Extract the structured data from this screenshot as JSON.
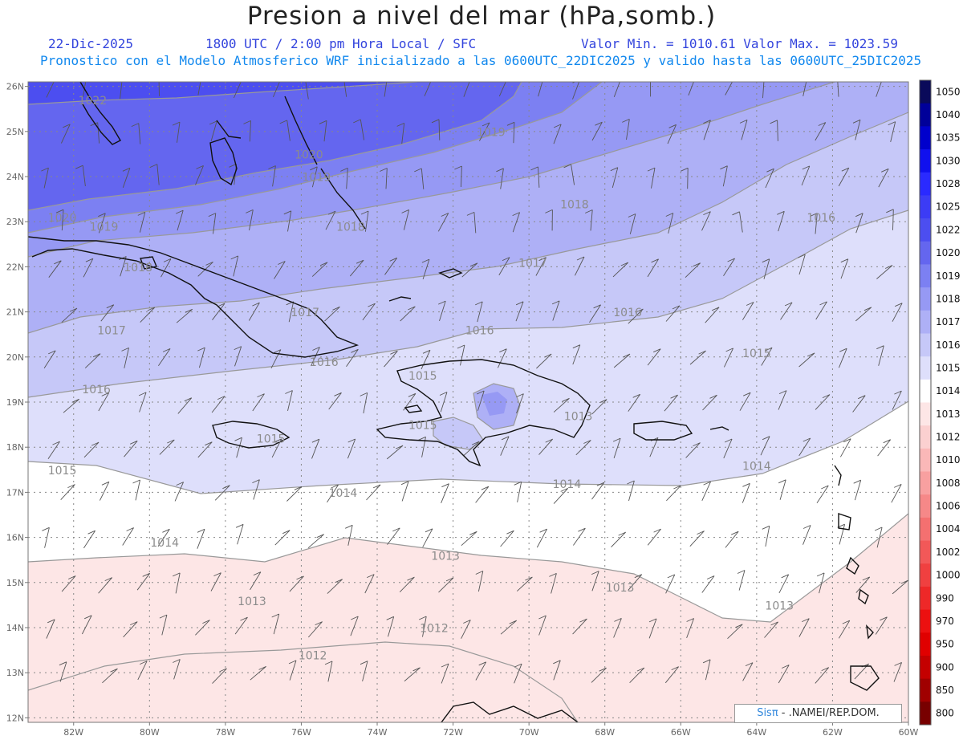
{
  "header": {
    "title": "Presion a nivel del mar (hPa,somb.)",
    "date": "22-Dic-2025",
    "time": "1800 UTC / 2:00 pm Hora Local / SFC",
    "min_max": "Valor Min. = 1010.61  Valor Max. = 1023.59",
    "model_info": "Pronostico con el Modelo Atmosferico WRF inicializado a las 0600UTC_22DIC2025 y valido hasta las  0600UTC_25DIC2025"
  },
  "axes": {
    "lat_labels": [
      "26N",
      "25N",
      "24N",
      "23N",
      "22N",
      "21N",
      "20N",
      "19N",
      "18N",
      "17N",
      "16N",
      "15N",
      "14N",
      "13N",
      "12N"
    ],
    "lon_labels": [
      "82W",
      "80W",
      "78W",
      "76W",
      "74W",
      "72W",
      "70W",
      "68W",
      "66W",
      "64W",
      "62W",
      "60W"
    ]
  },
  "colorbar": {
    "levels": [
      {
        "label": "1050",
        "color": "#0a0a5a"
      },
      {
        "label": "1040",
        "color": "#000099"
      },
      {
        "label": "1035",
        "color": "#0000cc"
      },
      {
        "label": "1030",
        "color": "#1010ee"
      },
      {
        "label": "1028",
        "color": "#2a2aff"
      },
      {
        "label": "1025",
        "color": "#3c3cf5"
      },
      {
        "label": "1022",
        "color": "#4c4ef0"
      },
      {
        "label": "1020",
        "color": "#6466ef"
      },
      {
        "label": "1019",
        "color": "#7c80f2"
      },
      {
        "label": "1018",
        "color": "#9699f4"
      },
      {
        "label": "1017",
        "color": "#aeb0f6"
      },
      {
        "label": "1016",
        "color": "#c6c8f8"
      },
      {
        "label": "1015",
        "color": "#dedffb"
      },
      {
        "label": "1014",
        "color": "#ffffff"
      },
      {
        "label": "1013",
        "color": "#fde6e6"
      },
      {
        "label": "1012",
        "color": "#fbd0d0"
      },
      {
        "label": "1010",
        "color": "#fab8b8"
      },
      {
        "label": "1008",
        "color": "#f8a0a0"
      },
      {
        "label": "1006",
        "color": "#f68888"
      },
      {
        "label": "1004",
        "color": "#f47070"
      },
      {
        "label": "1002",
        "color": "#f25858"
      },
      {
        "label": "1000",
        "color": "#f04040"
      },
      {
        "label": "990",
        "color": "#ee2828"
      },
      {
        "label": "970",
        "color": "#ec1010"
      },
      {
        "label": "950",
        "color": "#e00000"
      },
      {
        "label": "900",
        "color": "#c40000"
      },
      {
        "label": "850",
        "color": "#a00000"
      },
      {
        "label": "800",
        "color": "#780000"
      }
    ]
  },
  "contour_labels": [
    {
      "text": "1022",
      "lon": -81.5,
      "lat": 25.6
    },
    {
      "text": "1020",
      "lon": -75.8,
      "lat": 24.4
    },
    {
      "text": "1019",
      "lon": -75.6,
      "lat": 23.9
    },
    {
      "text": "1019",
      "lon": -71.0,
      "lat": 24.9
    },
    {
      "text": "1018",
      "lon": -68.8,
      "lat": 23.3
    },
    {
      "text": "1016",
      "lon": -62.3,
      "lat": 23.0
    },
    {
      "text": "1020",
      "lon": -82.3,
      "lat": 23.0
    },
    {
      "text": "1019",
      "lon": -81.2,
      "lat": 22.8
    },
    {
      "text": "1018",
      "lon": -74.7,
      "lat": 22.8
    },
    {
      "text": "1017",
      "lon": -69.9,
      "lat": 22.0
    },
    {
      "text": "1018",
      "lon": -80.3,
      "lat": 21.9
    },
    {
      "text": "1017",
      "lon": -75.9,
      "lat": 20.9
    },
    {
      "text": "1016",
      "lon": -67.4,
      "lat": 20.9
    },
    {
      "text": "1017",
      "lon": -81.0,
      "lat": 20.5
    },
    {
      "text": "1016",
      "lon": -71.3,
      "lat": 20.5
    },
    {
      "text": "1015",
      "lon": -64.0,
      "lat": 20.0
    },
    {
      "text": "1016",
      "lon": -75.4,
      "lat": 19.8
    },
    {
      "text": "1015",
      "lon": -72.8,
      "lat": 19.5
    },
    {
      "text": "1016",
      "lon": -81.4,
      "lat": 19.2
    },
    {
      "text": "1013",
      "lon": -68.7,
      "lat": 18.6
    },
    {
      "text": "1015",
      "lon": -72.8,
      "lat": 18.4
    },
    {
      "text": "1015",
      "lon": -76.8,
      "lat": 18.1
    },
    {
      "text": "1015",
      "lon": -82.3,
      "lat": 17.4
    },
    {
      "text": "1014",
      "lon": -74.9,
      "lat": 16.9
    },
    {
      "text": "1014",
      "lon": -69.0,
      "lat": 17.1
    },
    {
      "text": "1014",
      "lon": -64.0,
      "lat": 17.5
    },
    {
      "text": "1014",
      "lon": -79.6,
      "lat": 15.8
    },
    {
      "text": "1013",
      "lon": -72.2,
      "lat": 15.5
    },
    {
      "text": "1013",
      "lon": -77.3,
      "lat": 14.5
    },
    {
      "text": "1013",
      "lon": -67.6,
      "lat": 14.8
    },
    {
      "text": "1013",
      "lon": -63.4,
      "lat": 14.4
    },
    {
      "text": "1012",
      "lon": -72.5,
      "lat": 13.9
    },
    {
      "text": "1012",
      "lon": -75.7,
      "lat": 13.3
    }
  ],
  "credit": {
    "brand": "Sisπ",
    "text": " - .NAMEI/REP.DOM."
  }
}
